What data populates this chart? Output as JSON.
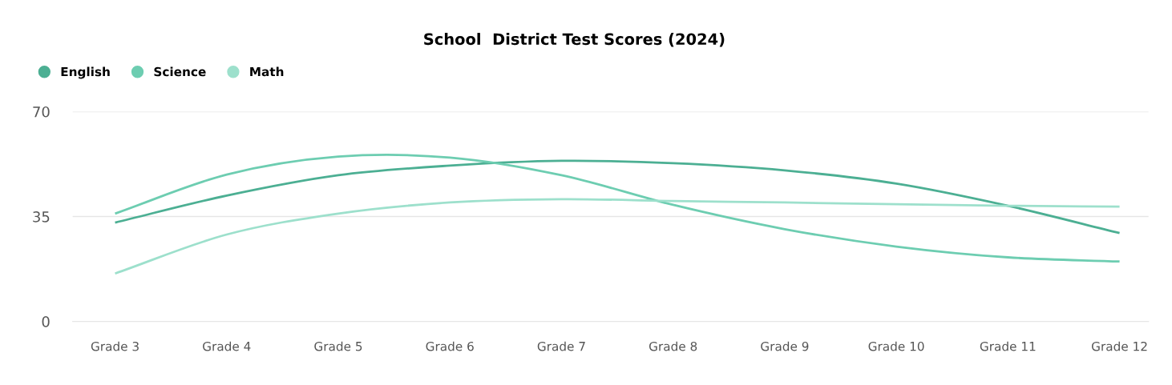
{
  "chart_data": {
    "type": "line",
    "title": "School  District Test Scores (2024)",
    "categories": [
      "Grade 3",
      "Grade 4",
      "Grade 5",
      "Grade 6",
      "Grade 7",
      "Grade 8",
      "Grade 9",
      "Grade 10",
      "Grade 11",
      "Grade 12"
    ],
    "series": [
      {
        "name": "English",
        "color": "#4caf93",
        "values": [
          33,
          42,
          48.8,
          52,
          53.6,
          52.8,
          50.4,
          46,
          38.6,
          29.5
        ]
      },
      {
        "name": "Science",
        "color": "#6dcdb1",
        "values": [
          36,
          49,
          55,
          54.7,
          48.8,
          38.9,
          30.8,
          25,
          21.4,
          20
        ]
      },
      {
        "name": "Math",
        "color": "#9de0cc",
        "values": [
          16,
          29,
          36,
          39.7,
          40.8,
          40.2,
          39.7,
          39.1,
          38.6,
          38.3
        ]
      }
    ],
    "ylim": [
      0,
      70
    ],
    "yticks": [
      0,
      35,
      70
    ],
    "grid": "y",
    "legend": "top left",
    "marker": "none",
    "line_style": "solid"
  }
}
